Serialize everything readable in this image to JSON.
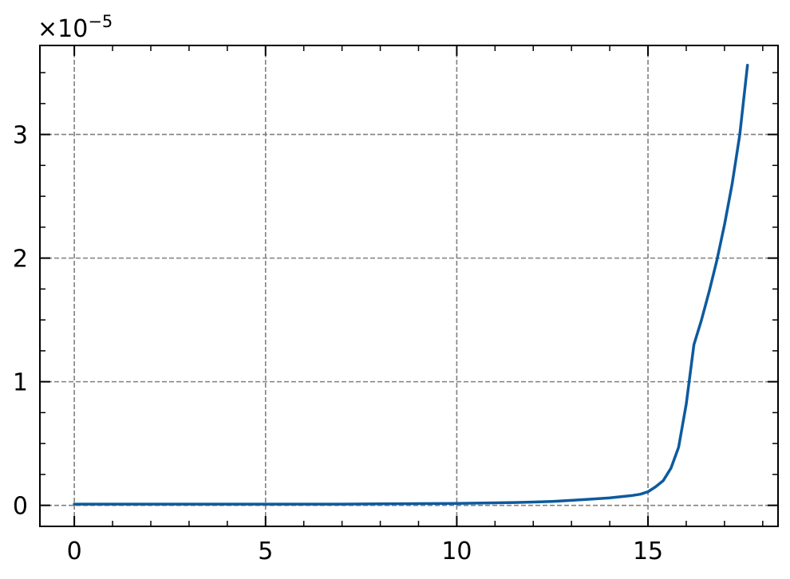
{
  "chart_data": {
    "type": "line",
    "title": "",
    "xlabel": "",
    "ylabel": "",
    "xlim": [
      -0.9,
      18.4
    ],
    "ylim": [
      -0.17,
      3.72
    ],
    "x_ticks": [
      0,
      5,
      10,
      15
    ],
    "x_tick_labels": [
      "0",
      "5",
      "10",
      "15"
    ],
    "y_ticks": [
      0,
      1,
      2,
      3
    ],
    "y_tick_labels": [
      "0",
      "1",
      "2",
      "3"
    ],
    "x_minor_step": 1,
    "y_minor_step": 0.25,
    "y_offset_text": {
      "base": "×10",
      "exponent": "−5"
    },
    "grid": true,
    "legend": "none",
    "series": [
      {
        "color": "#0d5a9e",
        "x": [
          0,
          1,
          2,
          3,
          4,
          5,
          6,
          7,
          8,
          9,
          10,
          11,
          11.5,
          12,
          12.5,
          13,
          13.5,
          14,
          14.3,
          14.6,
          14.8,
          15,
          15.2,
          15.4,
          15.6,
          15.8,
          16,
          16.2,
          16.4,
          16.6,
          16.8,
          17,
          17.2,
          17.4,
          17.6
        ],
        "y": [
          0.01,
          0.01,
          0.01,
          0.01,
          0.01,
          0.01,
          0.01,
          0.01,
          0.012,
          0.014,
          0.016,
          0.02,
          0.023,
          0.027,
          0.032,
          0.04,
          0.05,
          0.06,
          0.07,
          0.08,
          0.09,
          0.11,
          0.15,
          0.2,
          0.3,
          0.47,
          0.82,
          1.3,
          1.5,
          1.73,
          1.98,
          2.27,
          2.6,
          3.0,
          3.56
        ]
      }
    ]
  }
}
